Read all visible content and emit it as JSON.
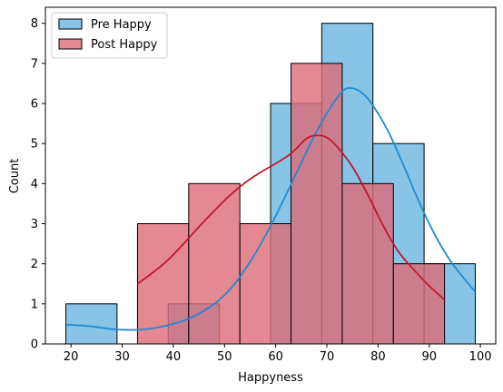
{
  "chart_data": {
    "type": "histogram",
    "xlabel": "Happyness",
    "ylabel": "Count",
    "xlim": [
      15,
      103
    ],
    "ylim": [
      0,
      8.4
    ],
    "x_ticks": [
      20,
      30,
      40,
      50,
      60,
      70,
      80,
      90,
      100
    ],
    "y_ticks": [
      0,
      1,
      2,
      3,
      4,
      5,
      6,
      7,
      8
    ],
    "legend_position": "top-left",
    "grid": false,
    "series": [
      {
        "name": "Pre Happy",
        "color": "#88c4e6",
        "edge_color": "#000000",
        "kde_color": "#1f8ad1",
        "bins": [
          {
            "x0": 19,
            "x1": 29,
            "count": 1
          },
          {
            "x0": 39,
            "x1": 49,
            "count": 1
          },
          {
            "x0": 59,
            "x1": 69,
            "count": 6
          },
          {
            "x0": 69,
            "x1": 79,
            "count": 8
          },
          {
            "x0": 79,
            "x1": 89,
            "count": 5
          },
          {
            "x0": 89,
            "x1": 99,
            "count": 2
          }
        ],
        "kde": [
          [
            19,
            0.48
          ],
          [
            22,
            0.46
          ],
          [
            25,
            0.42
          ],
          [
            28,
            0.37
          ],
          [
            31,
            0.35
          ],
          [
            34,
            0.36
          ],
          [
            37,
            0.41
          ],
          [
            40,
            0.5
          ],
          [
            43,
            0.63
          ],
          [
            46,
            0.83
          ],
          [
            49,
            1.1
          ],
          [
            52,
            1.5
          ],
          [
            55,
            2.05
          ],
          [
            58,
            2.7
          ],
          [
            61,
            3.45
          ],
          [
            64,
            4.25
          ],
          [
            67,
            5.05
          ],
          [
            70,
            5.75
          ],
          [
            73,
            6.3
          ],
          [
            75,
            6.38
          ],
          [
            77,
            6.25
          ],
          [
            79,
            5.95
          ],
          [
            82,
            5.3
          ],
          [
            85,
            4.45
          ],
          [
            88,
            3.55
          ],
          [
            91,
            2.75
          ],
          [
            94,
            2.1
          ],
          [
            97,
            1.6
          ],
          [
            99,
            1.3
          ]
        ]
      },
      {
        "name": "Post Happy",
        "color": "#dd6b77",
        "edge_color": "#000000",
        "kde_color": "#c0172a",
        "bins": [
          {
            "x0": 33,
            "x1": 43,
            "count": 3
          },
          {
            "x0": 43,
            "x1": 53,
            "count": 4
          },
          {
            "x0": 53,
            "x1": 63,
            "count": 3
          },
          {
            "x0": 63,
            "x1": 73,
            "count": 7
          },
          {
            "x0": 73,
            "x1": 83,
            "count": 4
          },
          {
            "x0": 83,
            "x1": 93,
            "count": 2
          }
        ],
        "kde": [
          [
            33,
            1.5
          ],
          [
            36,
            1.78
          ],
          [
            39,
            2.1
          ],
          [
            42,
            2.5
          ],
          [
            45,
            2.92
          ],
          [
            48,
            3.32
          ],
          [
            51,
            3.7
          ],
          [
            54,
            4.02
          ],
          [
            57,
            4.28
          ],
          [
            60,
            4.5
          ],
          [
            63,
            4.75
          ],
          [
            66,
            5.12
          ],
          [
            68,
            5.2
          ],
          [
            70,
            5.15
          ],
          [
            72,
            4.92
          ],
          [
            75,
            4.42
          ],
          [
            78,
            3.72
          ],
          [
            81,
            2.95
          ],
          [
            84,
            2.3
          ],
          [
            87,
            1.85
          ],
          [
            90,
            1.45
          ],
          [
            93,
            1.1
          ]
        ]
      }
    ]
  }
}
